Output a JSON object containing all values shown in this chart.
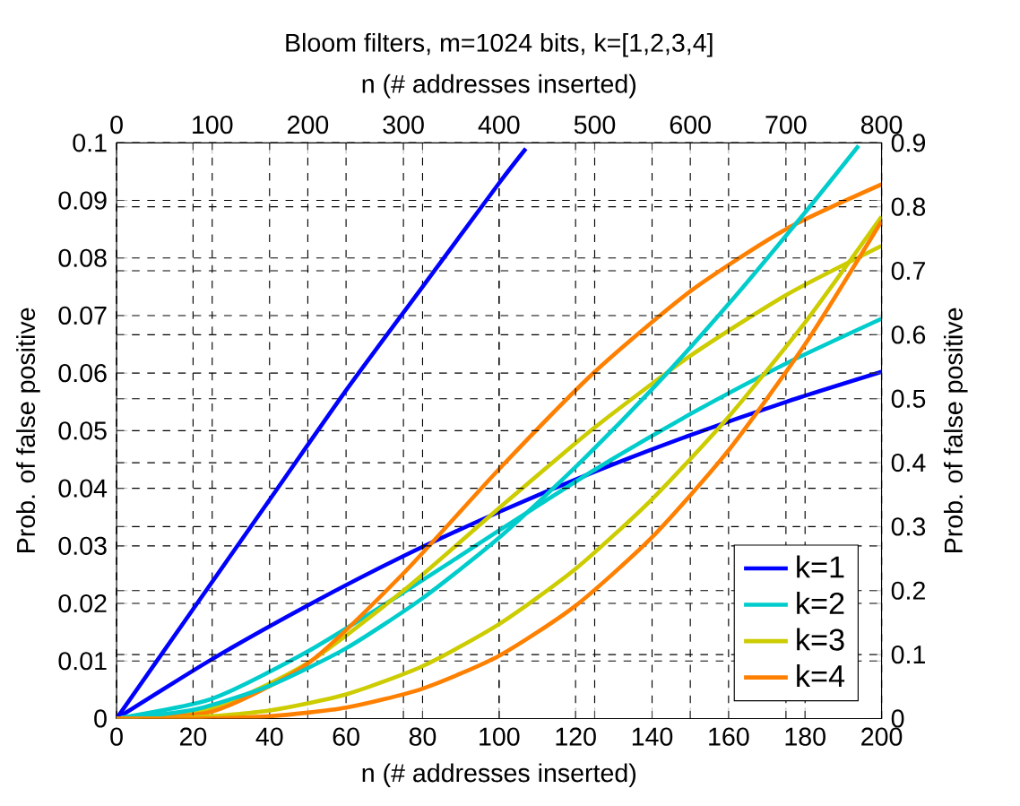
{
  "chart_data": [
    {
      "type": "line",
      "title": "Bloom filters, m=1024 bits, k=[1,2,3,4]",
      "xlabel": "n (# addresses inserted)",
      "ylabel": "Prob. of false positive",
      "xlim": [
        0,
        200
      ],
      "ylim": [
        0,
        0.1
      ],
      "xticks": [
        0,
        20,
        40,
        60,
        80,
        100,
        120,
        140,
        160,
        180,
        200
      ],
      "yticks": [
        0,
        0.01,
        0.02,
        0.03,
        0.04,
        0.05,
        0.06,
        0.07,
        0.08,
        0.09,
        0.1
      ],
      "grid": true,
      "legend": "bottom right",
      "marker": "none",
      "line_style": "solid",
      "series": [
        {
          "name": "k=1",
          "color": "#0000ff",
          "x": [
            0,
            20,
            40,
            60,
            80,
            100,
            107
          ],
          "values": [
            0,
            0.019,
            0.038,
            0.057,
            0.075,
            0.093,
            0.099
          ]
        },
        {
          "name": "k=2",
          "color": "#00cccc",
          "x": [
            0,
            20,
            40,
            60,
            80,
            100,
            120,
            140,
            160,
            180,
            194
          ],
          "values": [
            0,
            0.0015,
            0.0057,
            0.0122,
            0.0209,
            0.0314,
            0.0437,
            0.0572,
            0.072,
            0.0879,
            0.0995
          ]
        },
        {
          "name": "k=3",
          "color": "#cccc00",
          "x": [
            0,
            20,
            40,
            60,
            80,
            100,
            120,
            140,
            160,
            180,
            200
          ],
          "values": [
            0,
            0.0002,
            0.0014,
            0.0042,
            0.0091,
            0.0164,
            0.026,
            0.0381,
            0.0524,
            0.0688,
            0.0872
          ]
        },
        {
          "name": "k=4",
          "color": "#ff8000",
          "x": [
            0,
            20,
            40,
            60,
            80,
            100,
            120,
            140,
            160,
            180,
            200
          ],
          "values": [
            0,
            0,
            0.0004,
            0.0019,
            0.0052,
            0.0109,
            0.0196,
            0.0315,
            0.0466,
            0.065,
            0.0864
          ]
        }
      ]
    },
    {
      "type": "line",
      "xlabel": "n (# addresses inserted)",
      "ylabel": "Prob. of false positive",
      "xlim": [
        0,
        800
      ],
      "ylim": [
        0,
        0.9
      ],
      "xticks": [
        0,
        100,
        200,
        300,
        400,
        500,
        600,
        700,
        800
      ],
      "yticks": [
        0,
        0.1,
        0.2,
        0.3,
        0.4,
        0.5,
        0.6,
        0.7,
        0.8,
        0.9
      ],
      "grid": true,
      "marker": "none",
      "line_style": "solid",
      "series": [
        {
          "color": "#0000ff",
          "x": [
            0,
            100,
            200,
            300,
            400,
            500,
            600,
            700,
            800
          ],
          "values": [
            0,
            0.093,
            0.177,
            0.254,
            0.323,
            0.386,
            0.443,
            0.495,
            0.542
          ]
        },
        {
          "color": "#00cccc",
          "x": [
            0,
            100,
            200,
            300,
            400,
            500,
            600,
            700,
            800
          ],
          "values": [
            0,
            0.031,
            0.105,
            0.197,
            0.294,
            0.389,
            0.476,
            0.555,
            0.625
          ]
        },
        {
          "color": "#cccc00",
          "x": [
            0,
            100,
            200,
            300,
            400,
            500,
            600,
            700,
            800
          ],
          "values": [
            0,
            0.016,
            0.087,
            0.2,
            0.329,
            0.455,
            0.567,
            0.662,
            0.739
          ]
        },
        {
          "color": "#ff8000",
          "x": [
            0,
            100,
            200,
            300,
            400,
            500,
            600,
            700,
            800
          ],
          "values": [
            0,
            0.011,
            0.086,
            0.227,
            0.39,
            0.542,
            0.668,
            0.765,
            0.835
          ]
        }
      ]
    }
  ]
}
